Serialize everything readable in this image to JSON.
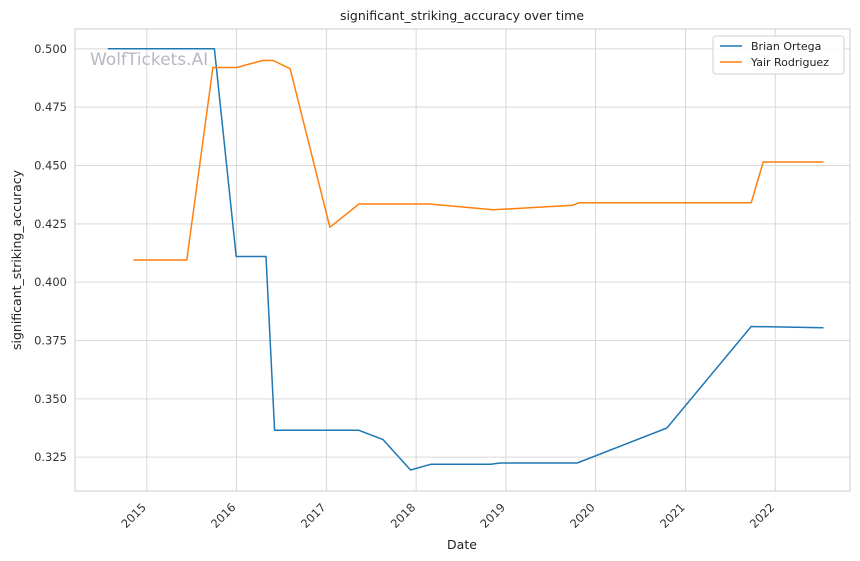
{
  "chart_data": {
    "type": "line",
    "title": "significant_striking_accuracy over time",
    "xlabel": "Date",
    "ylabel": "significant_striking_accuracy",
    "watermark": "WolfTickets.AI",
    "x_ticks": [
      "2015",
      "2016",
      "2017",
      "2018",
      "2019",
      "2020",
      "2021",
      "2022"
    ],
    "y_ticks": [
      "0.325",
      "0.350",
      "0.375",
      "0.400",
      "0.425",
      "0.450",
      "0.475",
      "0.500"
    ],
    "xlim": [
      "2014-03-15",
      "2022-11-01"
    ],
    "ylim": [
      0.3105,
      0.5085
    ],
    "grid": true,
    "legend_position": "top-right",
    "series": [
      {
        "name": "Brian Ortega",
        "color": "#1f77b4",
        "points": [
          [
            "2014-07-26",
            0.5
          ],
          [
            "2015-10-03",
            0.5
          ],
          [
            "2015-12-31",
            0.411
          ],
          [
            "2016-04-30",
            0.411
          ],
          [
            "2016-06-04",
            0.3365
          ],
          [
            "2017-05-13",
            0.3365
          ],
          [
            "2017-08-20",
            0.3325
          ],
          [
            "2017-12-09",
            0.3195
          ],
          [
            "2018-03-03",
            0.322
          ],
          [
            "2018-11-01",
            0.322
          ],
          [
            "2018-12-08",
            0.3225
          ],
          [
            "2019-10-18",
            0.3225
          ],
          [
            "2020-10-17",
            0.3375
          ],
          [
            "2021-09-25",
            0.381
          ],
          [
            "2022-07-16",
            0.3805
          ]
        ]
      },
      {
        "name": "Yair Rodriguez",
        "color": "#ff7f0e",
        "points": [
          [
            "2014-11-08",
            0.4095
          ],
          [
            "2015-06-13",
            0.4095
          ],
          [
            "2015-09-27",
            0.492
          ],
          [
            "2016-01-02",
            0.492
          ],
          [
            "2016-04-16",
            0.495
          ],
          [
            "2016-05-29",
            0.495
          ],
          [
            "2016-08-06",
            0.4915
          ],
          [
            "2017-01-15",
            0.4235
          ],
          [
            "2017-05-13",
            0.4335
          ],
          [
            "2018-02-24",
            0.4335
          ],
          [
            "2018-11-10",
            0.431
          ],
          [
            "2019-09-30",
            0.433
          ],
          [
            "2019-10-26",
            0.434
          ],
          [
            "2021-09-25",
            0.434
          ],
          [
            "2021-11-13",
            0.4515
          ],
          [
            "2022-07-16",
            0.4515
          ]
        ]
      }
    ]
  }
}
